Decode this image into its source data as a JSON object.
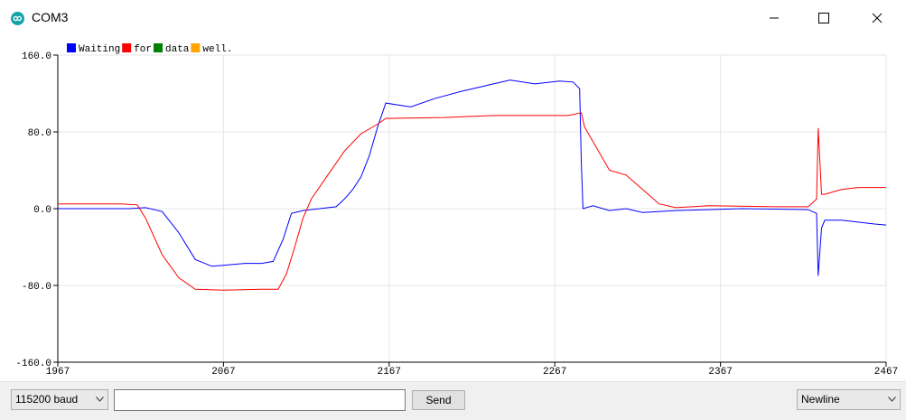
{
  "window": {
    "title": "COM3"
  },
  "bottom": {
    "baud": "115200 baud",
    "input_value": "",
    "send_label": "Send",
    "line_ending": "Newline"
  },
  "icons": {
    "app": "arduino-icon",
    "minimize": "minimize-icon",
    "maximize": "maximize-icon",
    "close": "close-icon",
    "dropdown": "chevron-down-icon"
  },
  "chart_data": {
    "type": "line",
    "title": "",
    "xlabel": "",
    "ylabel": "",
    "xlim": [
      1967,
      2467
    ],
    "ylim": [
      -160,
      160
    ],
    "x_ticks": [
      "1967",
      "2067",
      "2167",
      "2267",
      "2367",
      "2467"
    ],
    "y_ticks": [
      "160.0",
      "80.0",
      "0.0",
      "-80.0",
      "-160.0"
    ],
    "grid": true,
    "legend_position": "top-left",
    "legend": [
      {
        "label": "Waiting",
        "color": "#0000ff"
      },
      {
        "label": "for",
        "color": "#ff0000"
      },
      {
        "label": "data",
        "color": "#008000"
      },
      {
        "label": "well.",
        "color": "#ffa500"
      }
    ],
    "series": [
      {
        "name": "Waiting",
        "color": "#0000ff",
        "points": [
          [
            1967,
            0
          ],
          [
            2010,
            0
          ],
          [
            2020,
            1
          ],
          [
            2030,
            -3
          ],
          [
            2040,
            -25
          ],
          [
            2050,
            -53
          ],
          [
            2060,
            -60
          ],
          [
            2067,
            -59
          ],
          [
            2080,
            -57
          ],
          [
            2090,
            -57
          ],
          [
            2097,
            -55
          ],
          [
            2103,
            -32
          ],
          [
            2108,
            -5
          ],
          [
            2115,
            -2
          ],
          [
            2125,
            0
          ],
          [
            2135,
            2
          ],
          [
            2140,
            10
          ],
          [
            2145,
            20
          ],
          [
            2150,
            33
          ],
          [
            2155,
            55
          ],
          [
            2160,
            85
          ],
          [
            2165,
            110
          ],
          [
            2180,
            106
          ],
          [
            2195,
            115
          ],
          [
            2210,
            122
          ],
          [
            2230,
            130
          ],
          [
            2240,
            134
          ],
          [
            2255,
            130
          ],
          [
            2270,
            133
          ],
          [
            2278,
            132
          ],
          [
            2282,
            125
          ],
          [
            2283,
            50
          ],
          [
            2284,
            0
          ],
          [
            2290,
            3
          ],
          [
            2300,
            -2
          ],
          [
            2310,
            0
          ],
          [
            2320,
            -4
          ],
          [
            2340,
            -2
          ],
          [
            2380,
            0
          ],
          [
            2420,
            -1
          ],
          [
            2425,
            -5
          ],
          [
            2426,
            -70
          ],
          [
            2428,
            -20
          ],
          [
            2430,
            -12
          ],
          [
            2440,
            -12
          ],
          [
            2450,
            -14
          ],
          [
            2460,
            -16
          ],
          [
            2467,
            -17
          ]
        ]
      },
      {
        "name": "for",
        "color": "#ff0000",
        "points": [
          [
            1967,
            5
          ],
          [
            2005,
            5
          ],
          [
            2015,
            4
          ],
          [
            2020,
            -10
          ],
          [
            2030,
            -48
          ],
          [
            2040,
            -72
          ],
          [
            2050,
            -84
          ],
          [
            2067,
            -85
          ],
          [
            2090,
            -84
          ],
          [
            2100,
            -84
          ],
          [
            2105,
            -68
          ],
          [
            2110,
            -40
          ],
          [
            2115,
            -10
          ],
          [
            2120,
            10
          ],
          [
            2130,
            35
          ],
          [
            2140,
            60
          ],
          [
            2150,
            78
          ],
          [
            2160,
            88
          ],
          [
            2165,
            94
          ],
          [
            2200,
            95
          ],
          [
            2230,
            97
          ],
          [
            2260,
            97
          ],
          [
            2275,
            97
          ],
          [
            2283,
            100
          ],
          [
            2285,
            85
          ],
          [
            2290,
            70
          ],
          [
            2300,
            40
          ],
          [
            2310,
            35
          ],
          [
            2320,
            20
          ],
          [
            2330,
            5
          ],
          [
            2340,
            1
          ],
          [
            2360,
            3
          ],
          [
            2400,
            2
          ],
          [
            2420,
            2
          ],
          [
            2425,
            10
          ],
          [
            2426,
            84
          ],
          [
            2428,
            15
          ],
          [
            2430,
            15
          ],
          [
            2440,
            20
          ],
          [
            2450,
            22
          ],
          [
            2467,
            22
          ]
        ]
      }
    ]
  }
}
